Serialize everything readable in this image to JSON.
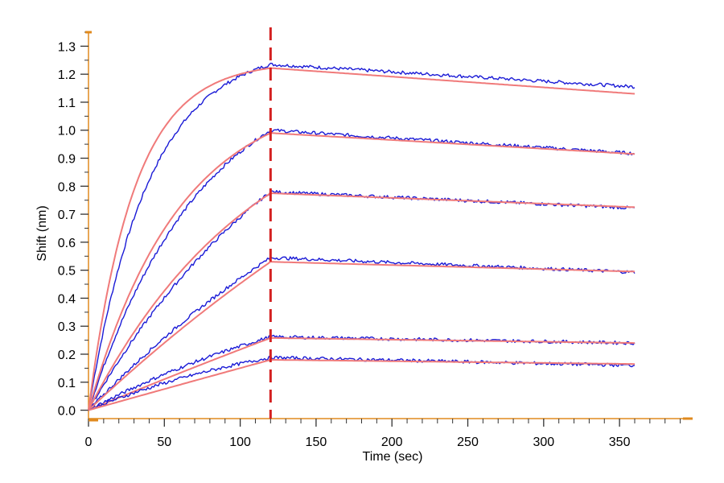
{
  "chart_data": {
    "type": "line",
    "title": "",
    "xlabel": "Time (sec)",
    "ylabel": "Shift (nm)",
    "xlim": [
      0,
      395
    ],
    "ylim": [
      -0.03,
      1.35
    ],
    "x_ticks": [
      0,
      50,
      100,
      150,
      200,
      250,
      300,
      350
    ],
    "x_tick_labels": [
      "0",
      "50",
      "100",
      "150",
      "200",
      "250",
      "300",
      "350"
    ],
    "y_ticks": [
      0.0,
      0.1,
      0.2,
      0.3,
      0.4,
      0.5,
      0.6,
      0.7,
      0.8,
      0.9,
      1.0,
      1.1,
      1.2,
      1.3
    ],
    "y_tick_labels": [
      "0.0",
      "0.1",
      "0.2",
      "0.3",
      "0.4",
      "0.5",
      "0.6",
      "0.7",
      "0.8",
      "0.9",
      "1.0",
      "1.1",
      "1.2",
      "1.3"
    ],
    "grid": false,
    "legend": "none",
    "association_end_time": 120,
    "dissociation_end_time": 360,
    "colors": {
      "measured": "#1a1ad6",
      "fit": "#f07a7a",
      "divider": "#d42020",
      "axis": "#e08a1e"
    },
    "series": [
      {
        "kind": "measured",
        "values": [
          1.235,
          1.155
        ],
        "tau": 40,
        "shape": "exp"
      },
      {
        "kind": "fit",
        "values": [
          1.222,
          1.13
        ],
        "tau": 30,
        "shape": "exp"
      },
      {
        "kind": "measured",
        "values": [
          1.0,
          0.917
        ],
        "tau": 75,
        "shape": "exp"
      },
      {
        "kind": "fit",
        "values": [
          0.99,
          0.915
        ],
        "tau": 60,
        "shape": "exp"
      },
      {
        "kind": "measured",
        "values": [
          0.78,
          0.722
        ],
        "tau": 150,
        "shape": "exp"
      },
      {
        "kind": "fit",
        "values": [
          0.775,
          0.725
        ],
        "tau": 110,
        "shape": "exp"
      },
      {
        "kind": "measured",
        "values": [
          0.545,
          0.493
        ],
        "tau": 250,
        "shape": "exp"
      },
      {
        "kind": "fit",
        "values": [
          0.53,
          0.495
        ],
        "tau": 400,
        "shape": "exp"
      },
      {
        "kind": "measured",
        "values": [
          0.262,
          0.24
        ],
        "tau": 200,
        "shape": "exp"
      },
      {
        "kind": "fit",
        "values": [
          0.258,
          0.24
        ],
        "tau": 1200,
        "shape": "exp"
      },
      {
        "kind": "measured",
        "values": [
          0.188,
          0.16
        ],
        "tau": 150,
        "shape": "exp"
      },
      {
        "kind": "fit",
        "values": [
          0.18,
          0.165
        ],
        "tau": 5000,
        "shape": "exp"
      }
    ]
  }
}
